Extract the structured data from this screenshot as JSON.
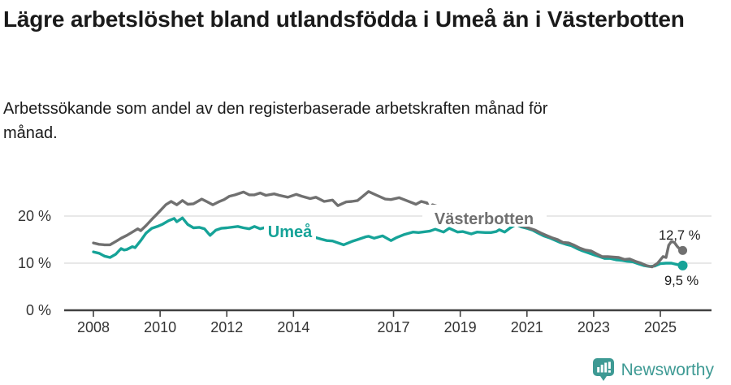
{
  "colors": {
    "umea": "#16A398",
    "vasterbotten": "#707070",
    "grid": "#DADADA",
    "axis": "#404040",
    "axis_text": "#333333",
    "annotation_text": "#1A1A1A",
    "brand": "#3E9A94"
  },
  "footer": {
    "brand": "Newsworthy"
  },
  "chart_data": {
    "type": "line",
    "title": "Lägre arbetslöshet bland utlandsfödda i Umeå än i Västerbotten",
    "subtitle": "Arbetssökande som andel av den registerbaserade arbetskraften månad för månad.",
    "xlabel": "",
    "ylabel": "",
    "grid": "horizontal",
    "legend_position": "inline-labels",
    "xlim": [
      2007.1,
      2026.5
    ],
    "ylim": [
      0,
      27.5
    ],
    "x_ticks": [
      2008,
      2010,
      2012,
      2014,
      2017,
      2019,
      2021,
      2023,
      2025
    ],
    "x_tick_labels": [
      "2008",
      "2010",
      "2012",
      "2014",
      "2017",
      "2019",
      "2021",
      "2023",
      "2025"
    ],
    "y_ticks": [
      0,
      10,
      20
    ],
    "y_tick_labels": [
      "0 %",
      "10 %",
      "20 %"
    ],
    "series": [
      {
        "id": "vasterbotten",
        "name": "Västerbotten",
        "color": "#707070",
        "end_label": "12,7 %",
        "end_value": 12.7,
        "points": [
          [
            2008.0,
            14.3
          ],
          [
            2008.17,
            14.0
          ],
          [
            2008.33,
            13.9
          ],
          [
            2008.5,
            13.9
          ],
          [
            2008.67,
            14.6
          ],
          [
            2008.83,
            15.3
          ],
          [
            2009.0,
            15.9
          ],
          [
            2009.17,
            16.6
          ],
          [
            2009.33,
            17.3
          ],
          [
            2009.42,
            16.9
          ],
          [
            2009.58,
            18.0
          ],
          [
            2009.75,
            19.3
          ],
          [
            2009.92,
            20.5
          ],
          [
            2010.0,
            21.1
          ],
          [
            2010.17,
            22.4
          ],
          [
            2010.33,
            23.1
          ],
          [
            2010.5,
            22.4
          ],
          [
            2010.67,
            23.3
          ],
          [
            2010.83,
            22.5
          ],
          [
            2011.0,
            22.6
          ],
          [
            2011.25,
            23.6
          ],
          [
            2011.42,
            23.0
          ],
          [
            2011.58,
            22.4
          ],
          [
            2011.75,
            23.0
          ],
          [
            2011.92,
            23.5
          ],
          [
            2012.08,
            24.2
          ],
          [
            2012.25,
            24.5
          ],
          [
            2012.5,
            25.1
          ],
          [
            2012.67,
            24.5
          ],
          [
            2012.83,
            24.5
          ],
          [
            2013.0,
            24.9
          ],
          [
            2013.17,
            24.4
          ],
          [
            2013.42,
            24.7
          ],
          [
            2013.58,
            24.4
          ],
          [
            2013.83,
            24.0
          ],
          [
            2014.08,
            24.6
          ],
          [
            2014.25,
            24.2
          ],
          [
            2014.5,
            23.7
          ],
          [
            2014.67,
            24.0
          ],
          [
            2014.92,
            23.1
          ],
          [
            2015.17,
            23.4
          ],
          [
            2015.33,
            22.2
          ],
          [
            2015.58,
            23.0
          ],
          [
            2015.75,
            23.1
          ],
          [
            2015.92,
            23.3
          ],
          [
            2016.08,
            24.2
          ],
          [
            2016.25,
            25.2
          ],
          [
            2016.5,
            24.4
          ],
          [
            2016.75,
            23.6
          ],
          [
            2016.92,
            23.5
          ],
          [
            2017.17,
            23.9
          ],
          [
            2017.42,
            23.2
          ],
          [
            2017.67,
            22.5
          ],
          [
            2017.83,
            23.1
          ],
          [
            2018.0,
            22.8
          ],
          [
            2018.08,
            21.6
          ],
          [
            2018.17,
            22.4
          ],
          [
            2018.5,
            21.7
          ],
          [
            2019.0,
            21.0
          ],
          [
            2019.5,
            20.2
          ],
          [
            2020.0,
            19.4
          ],
          [
            2020.33,
            18.8
          ],
          [
            2020.67,
            18.2
          ],
          [
            2020.92,
            17.8
          ],
          [
            2021.08,
            17.4
          ],
          [
            2021.25,
            17.0
          ],
          [
            2021.42,
            16.4
          ],
          [
            2021.58,
            15.9
          ],
          [
            2021.75,
            15.4
          ],
          [
            2021.92,
            15.0
          ],
          [
            2022.08,
            14.4
          ],
          [
            2022.25,
            14.3
          ],
          [
            2022.42,
            13.8
          ],
          [
            2022.58,
            13.2
          ],
          [
            2022.75,
            12.8
          ],
          [
            2022.92,
            12.6
          ],
          [
            2023.08,
            12.0
          ],
          [
            2023.25,
            11.4
          ],
          [
            2023.42,
            11.4
          ],
          [
            2023.58,
            11.3
          ],
          [
            2023.75,
            11.2
          ],
          [
            2023.92,
            10.8
          ],
          [
            2024.08,
            10.9
          ],
          [
            2024.25,
            10.4
          ],
          [
            2024.42,
            10.0
          ],
          [
            2024.58,
            9.5
          ],
          [
            2024.75,
            9.2
          ],
          [
            2024.92,
            10.0
          ],
          [
            2025.0,
            10.7
          ],
          [
            2025.08,
            11.4
          ],
          [
            2025.17,
            11.2
          ],
          [
            2025.25,
            13.8
          ],
          [
            2025.33,
            14.6
          ],
          [
            2025.42,
            14.4
          ],
          [
            2025.5,
            13.6
          ],
          [
            2025.58,
            13.0
          ],
          [
            2025.67,
            12.7
          ]
        ]
      },
      {
        "id": "umea",
        "name": "Umeå",
        "color": "#16A398",
        "end_label": "9,5 %",
        "end_value": 9.5,
        "points": [
          [
            2008.0,
            12.4
          ],
          [
            2008.17,
            12.1
          ],
          [
            2008.33,
            11.5
          ],
          [
            2008.5,
            11.2
          ],
          [
            2008.67,
            11.9
          ],
          [
            2008.83,
            13.1
          ],
          [
            2008.92,
            12.8
          ],
          [
            2009.0,
            12.9
          ],
          [
            2009.17,
            13.5
          ],
          [
            2009.25,
            13.3
          ],
          [
            2009.42,
            14.8
          ],
          [
            2009.58,
            16.4
          ],
          [
            2009.75,
            17.4
          ],
          [
            2009.92,
            17.8
          ],
          [
            2010.08,
            18.3
          ],
          [
            2010.25,
            19.0
          ],
          [
            2010.42,
            19.5
          ],
          [
            2010.5,
            18.8
          ],
          [
            2010.67,
            19.6
          ],
          [
            2010.83,
            18.2
          ],
          [
            2011.0,
            17.5
          ],
          [
            2011.17,
            17.6
          ],
          [
            2011.33,
            17.3
          ],
          [
            2011.5,
            15.9
          ],
          [
            2011.67,
            17.0
          ],
          [
            2011.83,
            17.4
          ],
          [
            2012.0,
            17.5
          ],
          [
            2012.33,
            17.8
          ],
          [
            2012.5,
            17.5
          ],
          [
            2012.67,
            17.3
          ],
          [
            2012.83,
            17.8
          ],
          [
            2013.0,
            17.3
          ],
          [
            2013.17,
            17.6
          ],
          [
            2013.33,
            17.2
          ],
          [
            2013.58,
            16.6
          ],
          [
            2013.83,
            16.2
          ],
          [
            2014.08,
            16.2
          ],
          [
            2014.33,
            15.7
          ],
          [
            2014.5,
            15.4
          ],
          [
            2014.58,
            15.6
          ],
          [
            2014.83,
            15.1
          ],
          [
            2015.0,
            14.8
          ],
          [
            2015.17,
            14.7
          ],
          [
            2015.5,
            13.9
          ],
          [
            2015.75,
            14.6
          ],
          [
            2015.92,
            15.0
          ],
          [
            2016.17,
            15.6
          ],
          [
            2016.25,
            15.7
          ],
          [
            2016.42,
            15.3
          ],
          [
            2016.67,
            15.8
          ],
          [
            2016.92,
            14.8
          ],
          [
            2017.08,
            15.4
          ],
          [
            2017.33,
            16.1
          ],
          [
            2017.58,
            16.6
          ],
          [
            2017.75,
            16.5
          ],
          [
            2018.08,
            16.8
          ],
          [
            2018.25,
            17.2
          ],
          [
            2018.5,
            16.6
          ],
          [
            2018.67,
            17.4
          ],
          [
            2018.92,
            16.6
          ],
          [
            2019.08,
            16.7
          ],
          [
            2019.33,
            16.2
          ],
          [
            2019.5,
            16.6
          ],
          [
            2019.75,
            16.5
          ],
          [
            2019.92,
            16.5
          ],
          [
            2020.08,
            16.7
          ],
          [
            2020.17,
            17.1
          ],
          [
            2020.33,
            16.6
          ],
          [
            2020.5,
            17.5
          ],
          [
            2020.67,
            18.2
          ],
          [
            2020.83,
            17.7
          ],
          [
            2021.0,
            17.4
          ],
          [
            2021.17,
            17.0
          ],
          [
            2021.33,
            16.4
          ],
          [
            2021.5,
            15.8
          ],
          [
            2021.67,
            15.4
          ],
          [
            2021.83,
            14.9
          ],
          [
            2022.0,
            14.4
          ],
          [
            2022.17,
            14.0
          ],
          [
            2022.33,
            13.7
          ],
          [
            2022.5,
            13.1
          ],
          [
            2022.67,
            12.6
          ],
          [
            2022.83,
            12.2
          ],
          [
            2023.0,
            11.8
          ],
          [
            2023.17,
            11.4
          ],
          [
            2023.33,
            11.0
          ],
          [
            2023.5,
            11.0
          ],
          [
            2023.67,
            10.7
          ],
          [
            2023.83,
            10.6
          ],
          [
            2024.0,
            10.4
          ],
          [
            2024.17,
            10.3
          ],
          [
            2024.33,
            9.9
          ],
          [
            2024.5,
            9.5
          ],
          [
            2024.67,
            9.3
          ],
          [
            2024.83,
            9.4
          ],
          [
            2025.0,
            9.9
          ],
          [
            2025.17,
            10.0
          ],
          [
            2025.33,
            10.0
          ],
          [
            2025.5,
            9.7
          ],
          [
            2025.67,
            9.5
          ]
        ]
      }
    ]
  }
}
